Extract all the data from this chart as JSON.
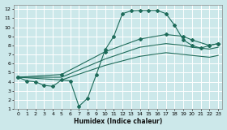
{
  "xlabel": "Humidex (Indice chaleur)",
  "bg_color": "#cce8ea",
  "grid_color": "#ffffff",
  "line_color": "#1e6b5a",
  "xlim": [
    -0.5,
    23.5
  ],
  "ylim": [
    1,
    12.5
  ],
  "xticks": [
    0,
    1,
    2,
    3,
    4,
    5,
    6,
    7,
    8,
    9,
    10,
    11,
    12,
    13,
    14,
    15,
    16,
    17,
    18,
    19,
    20,
    21,
    22,
    23
  ],
  "yticks": [
    1,
    2,
    3,
    4,
    5,
    6,
    7,
    8,
    9,
    10,
    11,
    12
  ],
  "line1_x": [
    0,
    1,
    2,
    3,
    4,
    5,
    6,
    7,
    8,
    9,
    10,
    11,
    12,
    13,
    14,
    15,
    16,
    17,
    18,
    19,
    20,
    21,
    22,
    23
  ],
  "line1_y": [
    4.5,
    4.1,
    4.0,
    3.6,
    3.5,
    4.2,
    4.1,
    1.3,
    2.2,
    4.8,
    7.5,
    9.0,
    11.5,
    11.8,
    11.85,
    11.85,
    11.85,
    11.5,
    10.2,
    8.6,
    8.0,
    7.7,
    8.0,
    8.2
  ],
  "line2_x": [
    0,
    5,
    10,
    14,
    17,
    19,
    20,
    22,
    23
  ],
  "line2_y": [
    4.5,
    4.8,
    7.3,
    8.7,
    9.2,
    9.0,
    8.6,
    8.0,
    8.2
  ],
  "line3_x": [
    0,
    5,
    10,
    14,
    17,
    19,
    20,
    22,
    23
  ],
  "line3_y": [
    4.5,
    4.5,
    6.5,
    7.8,
    8.2,
    8.0,
    7.8,
    7.6,
    7.8
  ],
  "line4_x": [
    0,
    5,
    10,
    14,
    17,
    19,
    20,
    22,
    23
  ],
  "line4_y": [
    4.5,
    4.2,
    5.8,
    6.8,
    7.2,
    7.0,
    6.9,
    6.7,
    6.9
  ]
}
